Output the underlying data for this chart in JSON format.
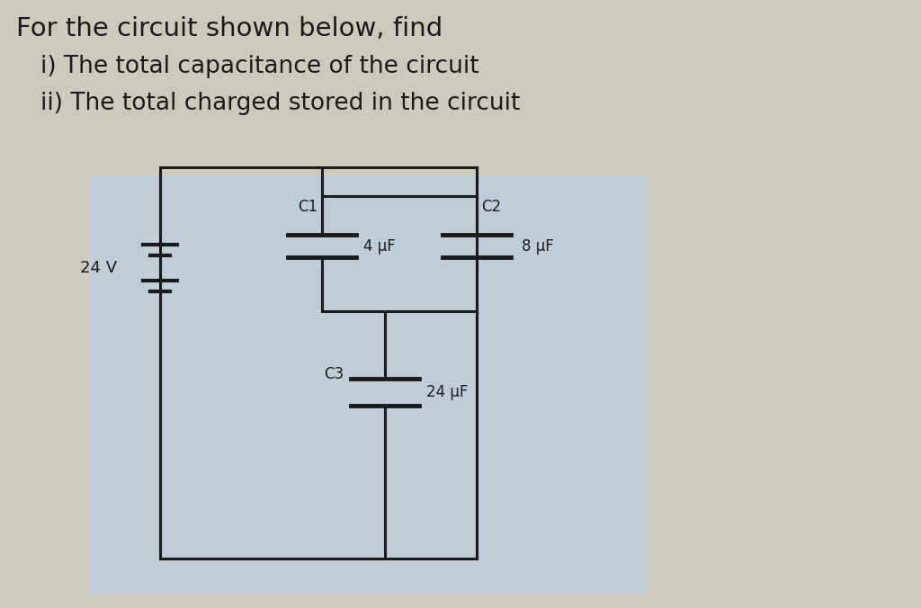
{
  "title_line1": "For the circuit shown below, find",
  "title_line2": "i) The total capacitance of the circuit",
  "title_line3": "ii) The total charged stored in the circuit",
  "bg_color_top": "#cdc9bc",
  "bg_color_circuit": "#bfcdd8",
  "line_color": "#1a1a1a",
  "text_color": "#1a1a1a",
  "voltage_label": "24 V",
  "c1_label": "C1",
  "c2_label": "C2",
  "c3_label": "C3",
  "c1_value": "4 μF",
  "c2_value": "8 μF",
  "c3_value": "24 μF",
  "figsize": [
    10.24,
    6.76
  ],
  "dpi": 100
}
